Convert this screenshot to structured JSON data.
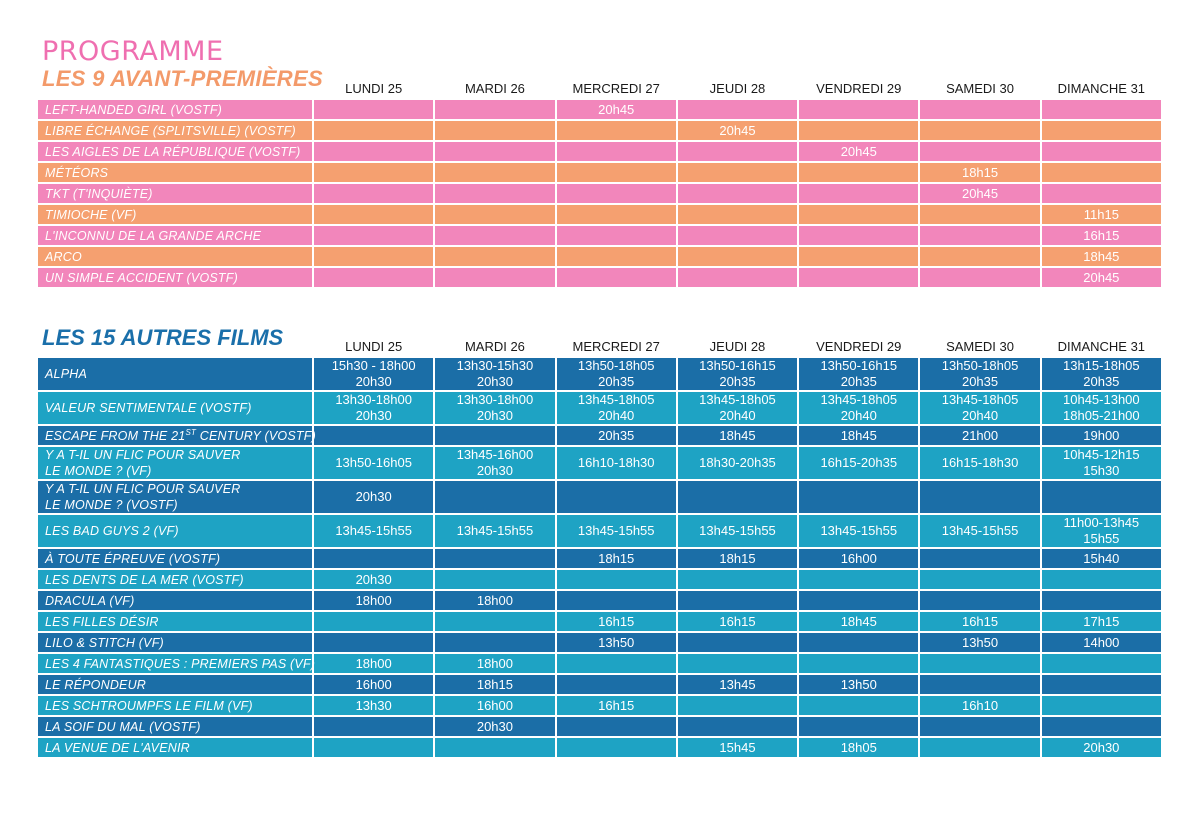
{
  "header": {
    "programme": "PROGRAMME",
    "avant_title": "LES 9 AVANT-PREMIÈRES",
    "autres_title": "LES 15 AUTRES FILMS"
  },
  "days": [
    "LUNDI 25",
    "MARDI 26",
    "MERCREDI 27",
    "JEUDI 28",
    "VENDREDI 29",
    "SAMEDI 30",
    "DIMANCHE 31"
  ],
  "colors": {
    "pink": "#f286bb",
    "orange": "#f5a070",
    "dark_blue": "#1b6ea7",
    "light_blue": "#1ea3c4",
    "programme_title": "#ef6fb0",
    "avant_title": "#f39a6a",
    "autres_title": "#1a6faa"
  },
  "avant_premieres": [
    {
      "film": "LEFT-HANDED GIRL (VOSTF)",
      "color": "pink",
      "times": [
        "",
        "",
        "20h45",
        "",
        "",
        "",
        ""
      ]
    },
    {
      "film": "LIBRE ÉCHANGE (SPLITSVILLE) (VOSTF)",
      "color": "orange",
      "times": [
        "",
        "",
        "",
        "20h45",
        "",
        "",
        ""
      ]
    },
    {
      "film": "LES AIGLES DE LA RÉPUBLIQUE (VOSTF)",
      "color": "pink",
      "times": [
        "",
        "",
        "",
        "",
        "20h45",
        "",
        ""
      ]
    },
    {
      "film": "MÉTÉORS",
      "color": "orange",
      "times": [
        "",
        "",
        "",
        "",
        "",
        "18h15",
        ""
      ]
    },
    {
      "film": "TKT (T'INQUIÈTE)",
      "color": "pink",
      "times": [
        "",
        "",
        "",
        "",
        "",
        "20h45",
        ""
      ]
    },
    {
      "film": "TIMIOCHE (VF)",
      "color": "orange",
      "times": [
        "",
        "",
        "",
        "",
        "",
        "",
        "11h15"
      ]
    },
    {
      "film": "L'INCONNU DE LA GRANDE ARCHE",
      "color": "pink",
      "times": [
        "",
        "",
        "",
        "",
        "",
        "",
        "16h15"
      ]
    },
    {
      "film": "ARCO",
      "color": "orange",
      "times": [
        "",
        "",
        "",
        "",
        "",
        "",
        "18h45"
      ]
    },
    {
      "film": "UN SIMPLE ACCIDENT (VOSTF)",
      "color": "pink",
      "times": [
        "",
        "",
        "",
        "",
        "",
        "",
        "20h45"
      ]
    }
  ],
  "autres_films": [
    {
      "film": [
        "ALPHA"
      ],
      "color": "dark",
      "times": [
        [
          "15h30 - 18h00",
          "20h30"
        ],
        [
          "13h30-15h30",
          "20h30"
        ],
        [
          "13h50-18h05",
          "20h35"
        ],
        [
          "13h50-16h15",
          "20h35"
        ],
        [
          "13h50-16h15",
          "20h35"
        ],
        [
          "13h50-18h05",
          "20h35"
        ],
        [
          "13h15-18h05",
          "20h35"
        ]
      ]
    },
    {
      "film": [
        "VALEUR SENTIMENTALE (VOSTF)"
      ],
      "color": "light",
      "times": [
        [
          "13h30-18h00",
          "20h30"
        ],
        [
          "13h30-18h00",
          "20h30"
        ],
        [
          "13h45-18h05",
          "20h40"
        ],
        [
          "13h45-18h05",
          "20h40"
        ],
        [
          "13h45-18h05",
          "20h40"
        ],
        [
          "13h45-18h05",
          "20h40"
        ],
        [
          "10h45-13h00",
          "18h05-21h00"
        ]
      ]
    },
    {
      "film": [
        "ESCAPE FROM THE 21ST CENTURY (VOSTF)"
      ],
      "color": "dark",
      "times": [
        [
          ""
        ],
        [
          ""
        ],
        [
          "20h35"
        ],
        [
          "18h45"
        ],
        [
          "18h45"
        ],
        [
          "21h00"
        ],
        [
          "19h00"
        ]
      ]
    },
    {
      "film": [
        "Y A T-IL UN FLIC POUR SAUVER",
        "LE MONDE ?  (VF)"
      ],
      "color": "light",
      "times": [
        [
          "13h50-16h05"
        ],
        [
          "13h45-16h00",
          "20h30"
        ],
        [
          "16h10-18h30"
        ],
        [
          "18h30-20h35"
        ],
        [
          "16h15-20h35"
        ],
        [
          "16h15-18h30"
        ],
        [
          "10h45-12h15",
          "15h30"
        ]
      ]
    },
    {
      "film": [
        "Y A T-IL UN FLIC POUR SAUVER",
        "LE MONDE ? (VOSTF)"
      ],
      "color": "dark",
      "times": [
        [
          "20h30"
        ],
        [
          ""
        ],
        [
          ""
        ],
        [
          ""
        ],
        [
          ""
        ],
        [
          ""
        ],
        [
          ""
        ]
      ]
    },
    {
      "film": [
        "LES BAD GUYS 2 (VF)"
      ],
      "color": "light",
      "times": [
        [
          "13h45-15h55"
        ],
        [
          "13h45-15h55"
        ],
        [
          "13h45-15h55"
        ],
        [
          "13h45-15h55"
        ],
        [
          "13h45-15h55"
        ],
        [
          "13h45-15h55"
        ],
        [
          "11h00-13h45",
          "15h55"
        ]
      ]
    },
    {
      "film": [
        "À TOUTE ÉPREUVE (VOSTF)"
      ],
      "color": "dark",
      "times": [
        [
          ""
        ],
        [
          ""
        ],
        [
          "18h15"
        ],
        [
          "18h15"
        ],
        [
          "16h00"
        ],
        [
          ""
        ],
        [
          "15h40"
        ]
      ]
    },
    {
      "film": [
        "LES DENTS DE LA MER (VOSTF)"
      ],
      "color": "light",
      "times": [
        [
          "20h30"
        ],
        [
          ""
        ],
        [
          ""
        ],
        [
          ""
        ],
        [
          ""
        ],
        [
          ""
        ],
        [
          ""
        ]
      ]
    },
    {
      "film": [
        "DRACULA  (VF)"
      ],
      "color": "dark",
      "times": [
        [
          "18h00"
        ],
        [
          "18h00"
        ],
        [
          ""
        ],
        [
          ""
        ],
        [
          ""
        ],
        [
          ""
        ],
        [
          ""
        ]
      ]
    },
    {
      "film": [
        "LES FILLES DÉSIR"
      ],
      "color": "light",
      "times": [
        [
          ""
        ],
        [
          ""
        ],
        [
          "16h15"
        ],
        [
          "16h15"
        ],
        [
          "18h45"
        ],
        [
          "16h15"
        ],
        [
          "17h15"
        ]
      ]
    },
    {
      "film": [
        "LILO & STITCH  (VF)"
      ],
      "color": "dark",
      "times": [
        [
          ""
        ],
        [
          ""
        ],
        [
          "13h50"
        ],
        [
          ""
        ],
        [
          ""
        ],
        [
          "13h50"
        ],
        [
          "14h00"
        ]
      ]
    },
    {
      "film": [
        "LES 4 FANTASTIQUES : PREMIERS PAS (VF)"
      ],
      "color": "light",
      "times": [
        [
          "18h00"
        ],
        [
          "18h00"
        ],
        [
          ""
        ],
        [
          ""
        ],
        [
          ""
        ],
        [
          ""
        ],
        [
          ""
        ]
      ]
    },
    {
      "film": [
        "LE RÉPONDEUR"
      ],
      "color": "dark",
      "times": [
        [
          "16h00"
        ],
        [
          "18h15"
        ],
        [
          ""
        ],
        [
          "13h45"
        ],
        [
          "13h50"
        ],
        [
          ""
        ],
        [
          ""
        ]
      ]
    },
    {
      "film": [
        "LES SCHTROUMPFS LE FILM (VF)"
      ],
      "color": "light",
      "times": [
        [
          "13h30"
        ],
        [
          "16h00"
        ],
        [
          "16h15"
        ],
        [
          ""
        ],
        [
          ""
        ],
        [
          "16h10"
        ],
        [
          ""
        ]
      ]
    },
    {
      "film": [
        "LA SOIF DU MAL (VOSTF)"
      ],
      "color": "dark",
      "times": [
        [
          ""
        ],
        [
          "20h30"
        ],
        [
          ""
        ],
        [
          ""
        ],
        [
          ""
        ],
        [
          ""
        ],
        [
          ""
        ]
      ]
    },
    {
      "film": [
        "LA VENUE DE L'AVENIR"
      ],
      "color": "light",
      "times": [
        [
          ""
        ],
        [
          ""
        ],
        [
          ""
        ],
        [
          "15h45"
        ],
        [
          "18h05"
        ],
        [
          ""
        ],
        [
          "20h30"
        ]
      ]
    }
  ]
}
